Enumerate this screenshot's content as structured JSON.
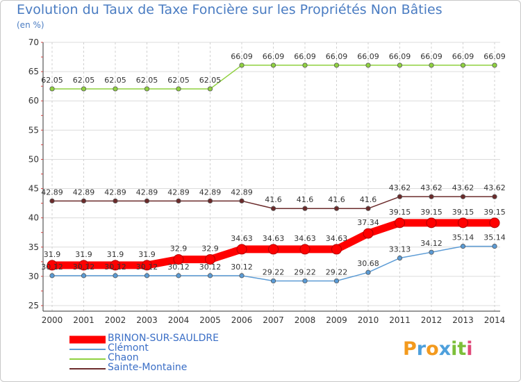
{
  "chart_data": {
    "type": "line",
    "title": "Evolution du Taux de Taxe Foncière sur les Propriétés Non Bâties",
    "ylabel": "(en %)",
    "xlabel": "",
    "ylim": [
      25,
      70
    ],
    "yticks": [
      "25",
      "30",
      "35",
      "40",
      "45",
      "50",
      "55",
      "60",
      "65",
      "70"
    ],
    "categories": [
      "2000",
      "2001",
      "2002",
      "2003",
      "2004",
      "2005",
      "2006",
      "2007",
      "2008",
      "2009",
      "2010",
      "2011",
      "2012",
      "2013",
      "2014"
    ],
    "series": [
      {
        "name": "Chaon",
        "color": "#8fd13f",
        "values": [
          62.05,
          62.05,
          62.05,
          62.05,
          62.05,
          62.05,
          66.09,
          66.09,
          66.09,
          66.09,
          66.09,
          66.09,
          66.09,
          66.09,
          66.09
        ],
        "labels": [
          "62.05",
          "62.05",
          "62.05",
          "62.05",
          "62.05",
          "62.05",
          "66.09",
          "66.09",
          "66.09",
          "66.09",
          "66.09",
          "66.09",
          "66.09",
          "66.09",
          "66.09"
        ]
      },
      {
        "name": "Sainte-Montaine",
        "color": "#6b2b2b",
        "values": [
          42.89,
          42.89,
          42.89,
          42.89,
          42.89,
          42.89,
          42.89,
          41.6,
          41.6,
          41.6,
          41.6,
          43.62,
          43.62,
          43.62,
          43.62
        ],
        "labels": [
          "42.89",
          "42.89",
          "42.89",
          "42.89",
          "42.89",
          "42.89",
          "42.89",
          "41.6",
          "41.6",
          "41.6",
          "41.6",
          "43.62",
          "43.62",
          "43.62",
          "43.62"
        ]
      },
      {
        "name": "Clémont",
        "color": "#5b9bd5",
        "values": [
          30.12,
          30.12,
          30.12,
          30.12,
          30.12,
          30.12,
          30.12,
          29.22,
          29.22,
          29.22,
          30.68,
          33.13,
          34.12,
          35.14,
          35.14
        ],
        "labels": [
          "30.12",
          "30.12",
          "30.12",
          "30.12",
          "30.12",
          "30.12",
          "30.12",
          "29.22",
          "29.22",
          "29.22",
          "30.68",
          "33.13",
          "34.12",
          "35.14",
          "35.14"
        ]
      },
      {
        "name": "BRINON-SUR-SAULDRE",
        "color": "#ff0000",
        "values": [
          31.9,
          31.9,
          31.9,
          31.9,
          32.9,
          32.9,
          34.63,
          34.63,
          34.63,
          34.63,
          37.34,
          39.15,
          39.15,
          39.15,
          39.15
        ],
        "labels": [
          "31.9",
          "31.9",
          "31.9",
          "31.9",
          "32.9",
          "32.9",
          "34.63",
          "34.63",
          "34.63",
          "34.63",
          "37.34",
          "39.15",
          "39.15",
          "39.15",
          "39.15"
        ]
      }
    ]
  },
  "legend": {
    "items": [
      {
        "label": "BRINON-SUR-SAULDRE",
        "color": "#ff0000"
      },
      {
        "label": "Clémont",
        "color": "#5b9bd5"
      },
      {
        "label": "Chaon",
        "color": "#8fd13f"
      },
      {
        "label": "Sainte-Montaine",
        "color": "#6b2b2b"
      }
    ]
  },
  "logo": {
    "text": "Proxiti",
    "letters": [
      "P",
      "r",
      "o",
      "x",
      "i",
      "t",
      "i"
    ],
    "colors": [
      "#f39a1e",
      "#4ea0dc",
      "#f39a1e",
      "#4ea0dc",
      "#7dbf3a",
      "#7dbf3a",
      "#e04a7a"
    ]
  }
}
